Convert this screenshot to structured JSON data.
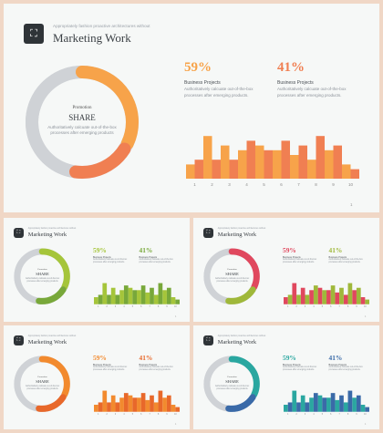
{
  "logo_glyph": "⛶",
  "tagline": "Appropriately fashion proactive architectures without",
  "title": "Marketing Work",
  "donut_center": {
    "label": "Promotion",
    "title": "SHARE",
    "desc": "Authoritatively calcuate out-of-the-box processes after emerging products"
  },
  "stats": [
    {
      "value": "59%",
      "title": "Business Projects",
      "desc": "Authoritatively calcuate out-of-the-box processes after emerging products."
    },
    {
      "value": "41%",
      "title": "Business Projects",
      "desc": "Authoritatively calcuate out-of-the-box processes after emerging products."
    }
  ],
  "page_number": "1",
  "chart_data": {
    "type": "bar",
    "categories": [
      "1",
      "2",
      "3",
      "4",
      "5",
      "6",
      "7",
      "8",
      "9",
      "10"
    ],
    "series": [
      {
        "values": [
          3,
          9,
          7,
          6,
          7,
          6,
          5,
          4,
          6,
          3
        ]
      },
      {
        "values": [
          4,
          4,
          4,
          8,
          6,
          8,
          7,
          9,
          7,
          2
        ]
      }
    ],
    "ylim": [
      0,
      10
    ]
  },
  "donut_data": {
    "segments": [
      0.32,
      0.18
    ],
    "track": 0.5
  },
  "themes": {
    "main": {
      "primary": "#f7a34a",
      "secondary": "#f07f52",
      "light": "#f9b868",
      "track": "#cfd2d6"
    },
    "s1": {
      "primary": "#a5c53a",
      "secondary": "#78a83a",
      "light": "#b9d35a",
      "track": "#cfd2d6"
    },
    "s2": {
      "primary": "#e0485e",
      "secondary": "#9fb83a",
      "light": "#e8707e",
      "track": "#cfd2d6"
    },
    "s3": {
      "primary": "#f28a2e",
      "secondary": "#e8682a",
      "light": "#f6a050",
      "track": "#cfd2d6"
    },
    "s4": {
      "primary": "#2aa7a0",
      "secondary": "#3a6aa8",
      "light": "#4fbab3",
      "track": "#cfd2d6"
    }
  }
}
